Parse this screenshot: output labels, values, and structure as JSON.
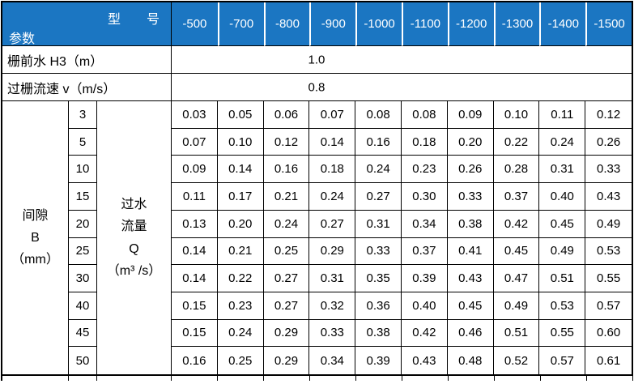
{
  "table": {
    "header": {
      "corner_top": "型　　号",
      "corner_bottom": "参数",
      "models": [
        "-500",
        "-700",
        "-800",
        "-900",
        "-1000",
        "-1100",
        "-1200",
        "-1300",
        "-1400",
        "-1500"
      ]
    },
    "param_rows": [
      {
        "label": "栅前水 H3（m）",
        "value": "1.0"
      },
      {
        "label": "过栅流速 v（m/s）",
        "value": "0.8"
      }
    ],
    "row_group": {
      "gap_header_lines": [
        "间隙",
        "B",
        "（mm）"
      ],
      "flow_header_lines": [
        "过水",
        "流量",
        "Q",
        "（m³ /s）"
      ],
      "gaps": [
        "3",
        "5",
        "10",
        "15",
        "20",
        "25",
        "30",
        "40",
        "45",
        "50"
      ],
      "flow_values": [
        [
          "0.03",
          "0.05",
          "0.06",
          "0.07",
          "0.08",
          "0.08",
          "0.09",
          "0.10",
          "0.11",
          "0.12"
        ],
        [
          "0.07",
          "0.10",
          "0.12",
          "0.14",
          "0.16",
          "0.18",
          "0.20",
          "0.22",
          "0.24",
          "0.26"
        ],
        [
          "0.09",
          "0.14",
          "0.16",
          "0.18",
          "0.24",
          "0.23",
          "0.26",
          "0.28",
          "0.31",
          "0.33"
        ],
        [
          "0.11",
          "0.17",
          "0.21",
          "0.24",
          "0.27",
          "0.30",
          "0.33",
          "0.37",
          "0.40",
          "0.43"
        ],
        [
          "0.13",
          "0.20",
          "0.24",
          "0.27",
          "0.31",
          "0.34",
          "0.38",
          "0.42",
          "0.45",
          "0.49"
        ],
        [
          "0.14",
          "0.21",
          "0.25",
          "0.29",
          "0.33",
          "0.37",
          "0.41",
          "0.45",
          "0.49",
          "0.53"
        ],
        [
          "0.14",
          "0.22",
          "0.27",
          "0.31",
          "0.35",
          "0.39",
          "0.43",
          "0.47",
          "0.51",
          "0.55"
        ],
        [
          "0.15",
          "0.23",
          "0.27",
          "0.32",
          "0.36",
          "0.40",
          "0.45",
          "0.49",
          "0.53",
          "0.57"
        ],
        [
          "0.15",
          "0.24",
          "0.29",
          "0.33",
          "0.38",
          "0.42",
          "0.46",
          "0.51",
          "0.55",
          "0.60"
        ],
        [
          "0.16",
          "0.25",
          "0.29",
          "0.34",
          "0.39",
          "0.43",
          "0.48",
          "0.52",
          "0.57",
          "0.61"
        ]
      ]
    },
    "colors": {
      "header_blue": "#1B76C2",
      "border": "#000000",
      "header_text": "#FFFFFF",
      "body_text": "#000000"
    }
  }
}
